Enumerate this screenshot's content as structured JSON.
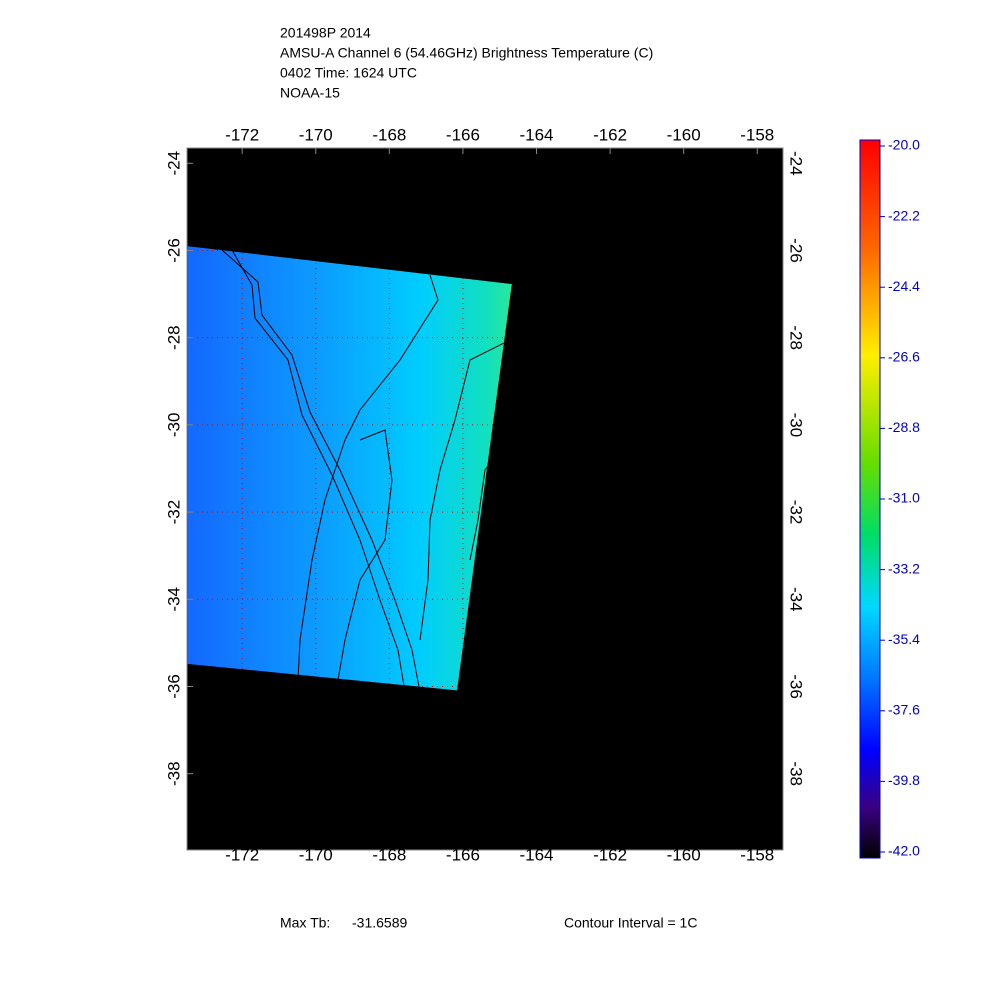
{
  "chart_data": {
    "type": "map",
    "title_lines": [
      "201498P 2014",
      "AMSU-A Channel 6 (54.46GHz) Brightness Temperature (C)",
      "0402 Time: 1624 UTC",
      "NOAA-15"
    ],
    "xlim": [
      -173.5,
      -157.3
    ],
    "ylim": [
      -23.65,
      -39.75
    ],
    "xticks": [
      -172,
      -170,
      -168,
      -166,
      -164,
      -162,
      -160,
      -158
    ],
    "yticks": [
      -24,
      -26,
      -28,
      -30,
      -32,
      -34,
      -36,
      -38
    ],
    "grid": true,
    "swath": {
      "lon": [
        -173.5,
        -164.67,
        -166.16,
        -173.5
      ],
      "lat": [
        -25.9,
        -26.77,
        -36.09,
        -35.48
      ]
    },
    "colorbar": {
      "clim": [
        -20,
        -42
      ],
      "ticks": [
        {
          "value": -20,
          "label": "-20.0"
        },
        {
          "value": -22.2,
          "label": "-22.2"
        },
        {
          "value": -24.4,
          "label": "-24.4"
        },
        {
          "value": -26.6,
          "label": "-26.6"
        },
        {
          "value": -28.8,
          "label": "-28.8"
        },
        {
          "value": -31,
          "label": "-31.0"
        },
        {
          "value": -33.2,
          "label": "-33.2"
        },
        {
          "value": -35.4,
          "label": "-35.4"
        },
        {
          "value": -37.6,
          "label": "-37.6"
        },
        {
          "value": -39.8,
          "label": "-39.8"
        },
        {
          "value": -42,
          "label": "-42.0"
        }
      ]
    },
    "max_tb_label": "Max Tb:",
    "max_tb": -31.6589,
    "contour_note": "Contour Interval = 1C"
  }
}
